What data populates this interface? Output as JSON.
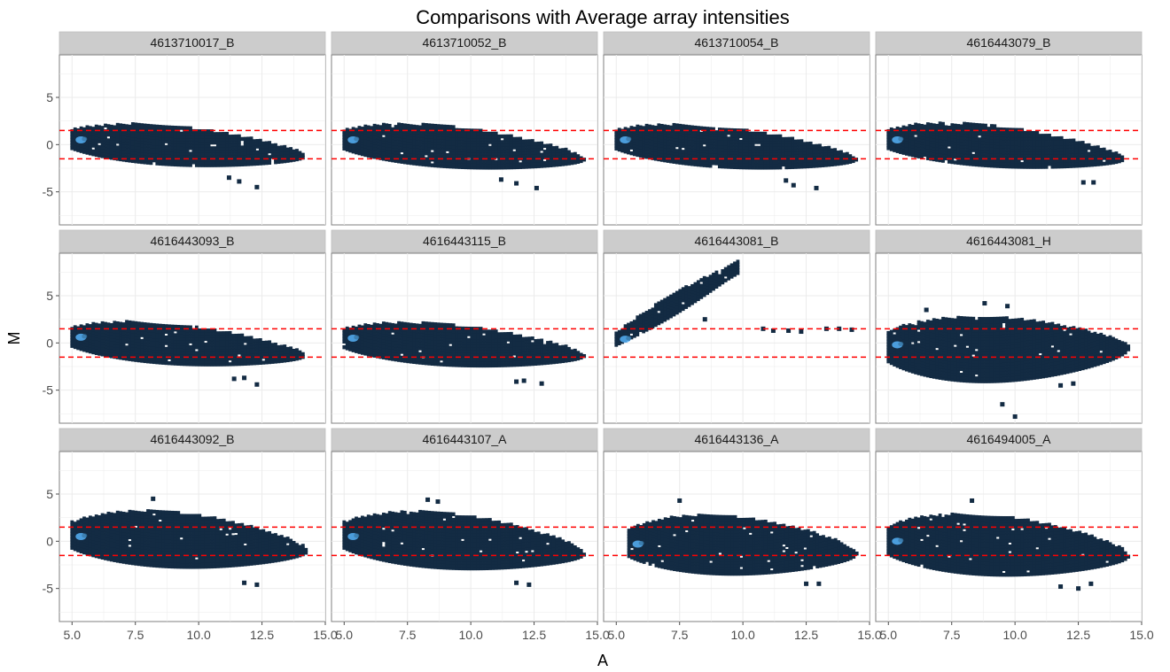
{
  "chart_data": {
    "type": "heatmap",
    "title": "Comparisons with Average array intensities",
    "xlabel": "A",
    "ylabel": "M",
    "xlim": [
      4.5,
      15.0
    ],
    "ylim": [
      -8.5,
      9.5
    ],
    "x_ticks": [
      5.0,
      7.5,
      10.0,
      12.5,
      15.0
    ],
    "x_tick_labels": [
      "5.0",
      "7.5",
      "10.0",
      "12.5",
      "15.0"
    ],
    "y_ticks": [
      -5,
      0,
      5
    ],
    "y_tick_labels": [
      "-5",
      "0",
      "5"
    ],
    "reference_lines": [
      1.5,
      -1.5
    ],
    "reference_line_color": "#ff0000",
    "fill_color": "#132b43",
    "high_density_color": "#56b1f7",
    "panel_background": "#ffffff",
    "grid_color": "#ebebeb",
    "strip_background": "#cccccc",
    "grid": true,
    "layout": [
      3,
      4
    ],
    "panels": [
      {
        "label": "4613710017_B",
        "shape": "ellipse",
        "x_range": [
          5.0,
          14.2
        ],
        "center_start": 0.5,
        "center_end": -1.2,
        "upper_extent": 2.6,
        "lower_extent": 2.2,
        "outliers": [
          [
            11.6,
            -3.9
          ],
          [
            12.3,
            -4.5
          ],
          [
            11.2,
            -3.5
          ]
        ]
      },
      {
        "label": "4613710052_B",
        "shape": "ellipse",
        "x_range": [
          5.0,
          14.5
        ],
        "center_start": 0.5,
        "center_end": -1.5,
        "upper_extent": 2.7,
        "lower_extent": 2.3,
        "outliers": [
          [
            11.8,
            -4.1
          ],
          [
            12.6,
            -4.6
          ],
          [
            11.2,
            -3.7
          ]
        ]
      },
      {
        "label": "4613710054_B",
        "shape": "ellipse",
        "x_range": [
          5.0,
          14.5
        ],
        "center_start": 0.5,
        "center_end": -1.5,
        "upper_extent": 2.6,
        "lower_extent": 2.3,
        "outliers": [
          [
            12.0,
            -4.3
          ],
          [
            12.9,
            -4.6
          ],
          [
            11.7,
            -3.8
          ]
        ]
      },
      {
        "label": "4616443079_B",
        "shape": "ellipse",
        "x_range": [
          5.0,
          14.3
        ],
        "center_start": 0.5,
        "center_end": -1.5,
        "upper_extent": 2.8,
        "lower_extent": 2.2,
        "outliers": [
          [
            12.7,
            -4.0
          ],
          [
            13.1,
            -4.0
          ]
        ]
      },
      {
        "label": "4616443093_B",
        "shape": "ellipse",
        "x_range": [
          5.0,
          14.2
        ],
        "center_start": 0.6,
        "center_end": -1.3,
        "upper_extent": 2.6,
        "lower_extent": 2.3,
        "outliers": [
          [
            11.8,
            -3.7
          ],
          [
            12.3,
            -4.4
          ],
          [
            11.4,
            -3.8
          ]
        ]
      },
      {
        "label": "4616443115_B",
        "shape": "ellipse",
        "x_range": [
          5.0,
          14.5
        ],
        "center_start": 0.5,
        "center_end": -1.3,
        "upper_extent": 2.6,
        "lower_extent": 2.4,
        "outliers": [
          [
            11.8,
            -4.1
          ],
          [
            12.8,
            -4.3
          ],
          [
            12.1,
            -4.0
          ]
        ]
      },
      {
        "label": "4616443081_B",
        "shape": "diagonal",
        "x_range": [
          5.0,
          9.8
        ],
        "center_start": 0.4,
        "center_end": 8.0,
        "upper_extent": 1.2,
        "lower_extent": 1.0,
        "outliers": [
          [
            8.5,
            2.5
          ],
          [
            10.8,
            1.5
          ],
          [
            11.2,
            1.3
          ],
          [
            11.8,
            1.3
          ],
          [
            12.3,
            1.2
          ],
          [
            13.3,
            1.5
          ],
          [
            13.8,
            1.5
          ],
          [
            14.3,
            1.4
          ]
        ]
      },
      {
        "label": "4616443081_H",
        "shape": "ellipse",
        "x_range": [
          5.0,
          14.5
        ],
        "center_start": -0.2,
        "center_end": -0.5,
        "upper_extent": 3.6,
        "lower_extent": 4.4,
        "outliers": [
          [
            8.8,
            4.2
          ],
          [
            9.7,
            3.9
          ],
          [
            10.0,
            -7.8
          ],
          [
            9.5,
            -6.5
          ],
          [
            11.8,
            -4.5
          ],
          [
            12.3,
            -4.3
          ],
          [
            6.5,
            3.5
          ]
        ]
      },
      {
        "label": "4616443092_B",
        "shape": "ellipse",
        "x_range": [
          5.0,
          14.3
        ],
        "center_start": 0.5,
        "center_end": -1.0,
        "upper_extent": 3.8,
        "lower_extent": 3.0,
        "outliers": [
          [
            8.2,
            4.5
          ],
          [
            11.8,
            -4.4
          ],
          [
            12.3,
            -4.6
          ]
        ]
      },
      {
        "label": "4616443107_A",
        "shape": "ellipse",
        "x_range": [
          5.0,
          14.5
        ],
        "center_start": 0.5,
        "center_end": -1.3,
        "upper_extent": 3.8,
        "lower_extent": 3.0,
        "outliers": [
          [
            8.3,
            4.4
          ],
          [
            8.7,
            4.2
          ],
          [
            11.8,
            -4.4
          ],
          [
            12.3,
            -4.6
          ]
        ]
      },
      {
        "label": "4616443136_A",
        "shape": "ellipse",
        "x_range": [
          5.5,
          14.5
        ],
        "center_start": -0.3,
        "center_end": -1.3,
        "upper_extent": 4.0,
        "lower_extent": 3.2,
        "outliers": [
          [
            7.5,
            4.3
          ],
          [
            12.5,
            -4.5
          ],
          [
            13.0,
            -4.5
          ]
        ]
      },
      {
        "label": "4616494005_A",
        "shape": "ellipse",
        "x_range": [
          5.0,
          14.5
        ],
        "center_start": 0.0,
        "center_end": -1.5,
        "upper_extent": 4.0,
        "lower_extent": 3.4,
        "outliers": [
          [
            8.3,
            4.3
          ],
          [
            11.8,
            -4.8
          ],
          [
            12.5,
            -5.0
          ],
          [
            13.0,
            -4.5
          ]
        ]
      }
    ]
  }
}
